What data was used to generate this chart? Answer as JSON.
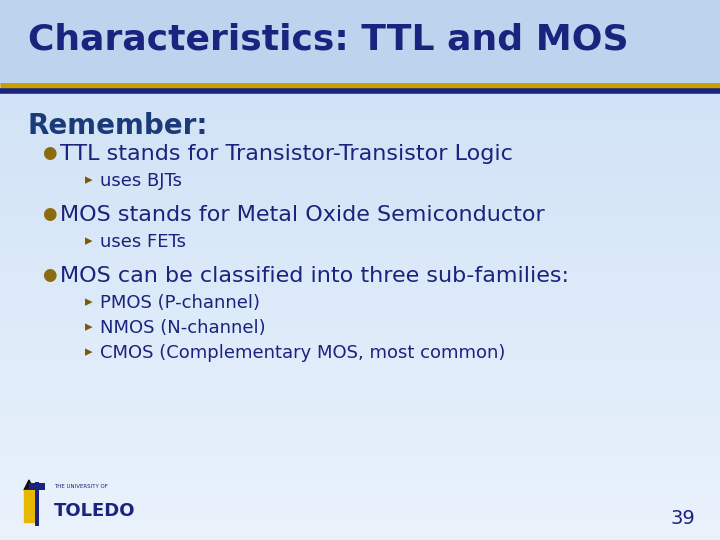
{
  "title": "Characteristics: TTL and MOS",
  "bg_top_color": "#cce0f5",
  "bg_bottom_color": "#e8f0fa",
  "title_color": "#1a237e",
  "title_fontsize": 26,
  "separator_gold": "#c8a000",
  "separator_navy": "#1a237e",
  "section_header": "Remember:",
  "section_header_color": "#1a3a7a",
  "section_header_fontsize": 20,
  "bullet_color": "#8b6a10",
  "sub_bullet_color": "#7a5a08",
  "text_color": "#1a237e",
  "bullet_fontsize": 16,
  "sub_bullet_fontsize": 13,
  "page_number": "39",
  "items": [
    {
      "text": "TTL stands for Transistor-Transistor Logic",
      "subitems": [
        "uses BJTs"
      ]
    },
    {
      "text": "MOS stands for Metal Oxide Semiconductor",
      "subitems": [
        "uses FETs"
      ]
    },
    {
      "text": "MOS can be classified into three sub-families:",
      "subitems": [
        "PMOS (P-channel)",
        "NMOS (N-channel)",
        "CMOS (Complementary MOS, most common)"
      ]
    }
  ]
}
